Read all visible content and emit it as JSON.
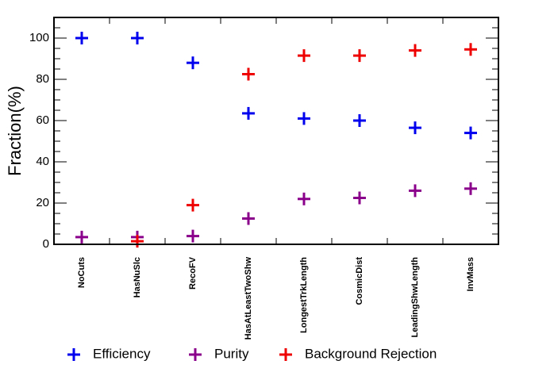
{
  "chart_data": {
    "type": "scatter",
    "title": "",
    "xlabel": "",
    "ylabel": "Fraction(%)",
    "ylim": [
      0,
      110
    ],
    "yticks": [
      0,
      20,
      40,
      60,
      80,
      100
    ],
    "grid": false,
    "legend_position": "bottom",
    "marker": "plus",
    "categories": [
      "NoCuts",
      "HasNuSlc",
      "RecoFV",
      "HasAtLeastTwoShw",
      "LongestTrkLength",
      "CosmicDist",
      "LeadingShwLength",
      "InvMass"
    ],
    "series": [
      {
        "name": "Efficiency",
        "color": "#0000ee",
        "values": [
          100,
          100,
          88,
          63.5,
          61,
          60,
          56.5,
          54
        ]
      },
      {
        "name": "Purity",
        "color": "#8b008b",
        "values": [
          3.5,
          3.5,
          4,
          12.5,
          22,
          22.5,
          26,
          27
        ]
      },
      {
        "name": "Background Rejection",
        "color": "#ee0000",
        "values": [
          null,
          1.5,
          19,
          82.5,
          91.5,
          91.5,
          94,
          94.5
        ]
      }
    ]
  }
}
